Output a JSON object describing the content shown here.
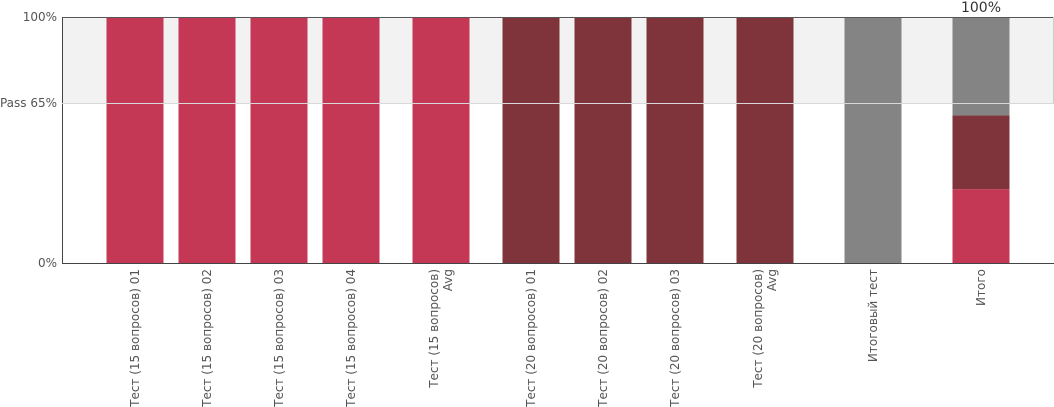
{
  "chart_data": {
    "type": "bar",
    "stacked": true,
    "ylim": [
      0,
      100
    ],
    "pass_threshold": 65,
    "pass_band_color": "#f2f2f2",
    "yticks": [
      {
        "value": 0,
        "label": "0%"
      },
      {
        "value": 65,
        "label": "Pass 65%"
      },
      {
        "value": 100,
        "label": "100%"
      }
    ],
    "categories": [
      {
        "lines": [
          "Тест (15 вопросов) 01"
        ],
        "group": "15"
      },
      {
        "lines": [
          "Тест (15 вопросов) 02"
        ],
        "group": "15"
      },
      {
        "lines": [
          "Тест (15 вопросов) 03"
        ],
        "group": "15"
      },
      {
        "lines": [
          "Тест (15 вопросов) 04"
        ],
        "group": "15"
      },
      {
        "lines": [
          "Тест (15 вопросов)",
          "Avg"
        ],
        "group": "15avg"
      },
      {
        "lines": [
          "Тест (20 вопросов) 01"
        ],
        "group": "20"
      },
      {
        "lines": [
          "Тест (20 вопросов) 02"
        ],
        "group": "20"
      },
      {
        "lines": [
          "Тест (20 вопросов) 03"
        ],
        "group": "20"
      },
      {
        "lines": [
          "Тест (20 вопросов)",
          "Avg"
        ],
        "group": "20avg"
      },
      {
        "lines": [
          "Итоговый тест"
        ],
        "group": "final"
      },
      {
        "lines": [
          "Итого"
        ],
        "group": "total"
      }
    ],
    "series": [
      {
        "color": "#c3324f",
        "values": [
          100,
          100,
          100,
          100,
          100,
          0,
          0,
          0,
          0,
          0,
          30
        ]
      },
      {
        "color": "#7b2d35",
        "values": [
          0,
          0,
          0,
          0,
          0,
          100,
          100,
          100,
          100,
          0,
          30
        ]
      },
      {
        "color": "#808080",
        "values": [
          0,
          0,
          0,
          0,
          0,
          0,
          0,
          0,
          0,
          100,
          40
        ]
      }
    ],
    "data_labels": [
      {
        "index": 10,
        "text": "100%"
      }
    ]
  }
}
